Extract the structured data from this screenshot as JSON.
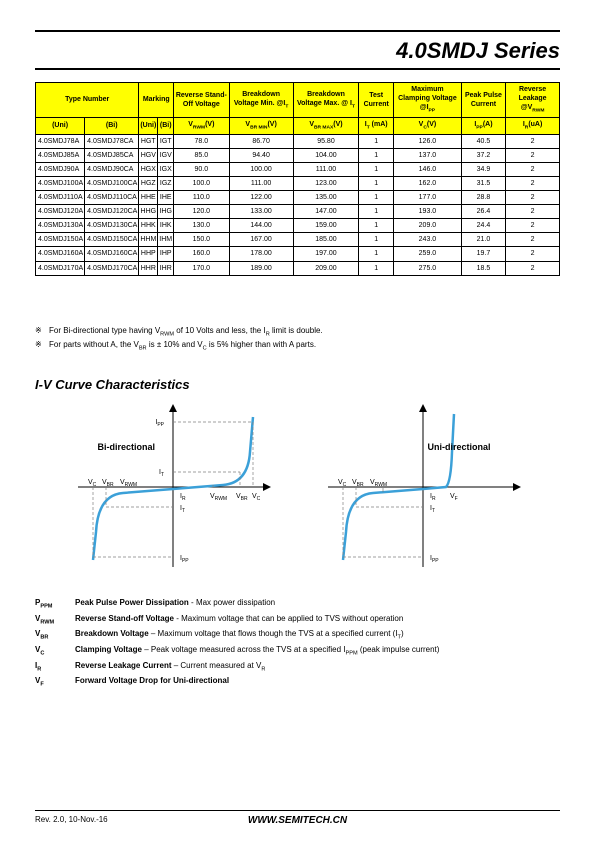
{
  "header": {
    "title": "4.0SMDJ  Series"
  },
  "table": {
    "headers": {
      "type_number": "Type Number",
      "marking": "Marking",
      "reverse_standoff": "Reverse Stand-Off Voltage",
      "breakdown_min": "Breakdown Voltage Min. @I",
      "breakdown_min_sub": "T",
      "breakdown_max": "Breakdown Voltage Max. @ I",
      "breakdown_max_sub": "T",
      "test_current": "Test Current",
      "clamping": "Maximum Clamping Voltage @I",
      "clamping_sub": "PP",
      "peak_pulse": "Peak Pulse Current",
      "leakage": "Reverse Leakage @V",
      "leakage_sub": "RWM",
      "uni": "(Uni)",
      "bi": "(Bi)",
      "vrwm": "V",
      "vrwm_sub": "RWM",
      "vrwm_unit": "(V)",
      "vbrmin": "V",
      "vbrmin_sub": "BR MIN",
      "vbrmin_unit": "(V)",
      "vbrmax": "V",
      "vbrmax_sub": "BR MAX",
      "vbrmax_unit": "(V)",
      "it": "I",
      "it_sub": "T",
      "it_unit": " (mA)",
      "vc": "V",
      "vc_sub": "C",
      "vc_unit": "(V)",
      "ipp": "I",
      "ipp_sub": "PP",
      "ipp_unit": "(A)",
      "ir": "I",
      "ir_sub": "R",
      "ir_unit": "(uA)"
    },
    "rows": [
      {
        "uni": "4.0SMDJ78A",
        "bi": "4.0SMDJ78CA",
        "muni": "HGT",
        "mbi": "IGT",
        "vrwm": "78.0",
        "vbrmin": "86.70",
        "vbrmax": "95.80",
        "it": "1",
        "vc": "126.0",
        "ipp": "40.5",
        "ir": "2",
        "sep": false
      },
      {
        "uni": "4.0SMDJ85A",
        "bi": "4.0SMDJ85CA",
        "muni": "HGV",
        "mbi": "IGV",
        "vrwm": "85.0",
        "vbrmin": "94.40",
        "vbrmax": "104.00",
        "it": "1",
        "vc": "137.0",
        "ipp": "37.2",
        "ir": "2",
        "sep": false
      },
      {
        "uni": "4.0SMDJ90A",
        "bi": "4.0SMDJ90CA",
        "muni": "HGX",
        "mbi": "IGX",
        "vrwm": "90.0",
        "vbrmin": "100.00",
        "vbrmax": "111.00",
        "it": "1",
        "vc": "146.0",
        "ipp": "34.9",
        "ir": "2",
        "sep": false
      },
      {
        "uni": "4.0SMDJ100A",
        "bi": "4.0SMDJ100CA",
        "muni": "HGZ",
        "mbi": "IGZ",
        "vrwm": "100.0",
        "vbrmin": "111.00",
        "vbrmax": "123.00",
        "it": "1",
        "vc": "162.0",
        "ipp": "31.5",
        "ir": "2",
        "sep": false
      },
      {
        "uni": "4.0SMDJ110A",
        "bi": "4.0SMDJ110CA",
        "muni": "HHE",
        "mbi": "IHE",
        "vrwm": "110.0",
        "vbrmin": "122.00",
        "vbrmax": "135.00",
        "it": "1",
        "vc": "177.0",
        "ipp": "28.8",
        "ir": "2",
        "sep": true
      },
      {
        "uni": "4.0SMDJ120A",
        "bi": "4.0SMDJ120CA",
        "muni": "HHG",
        "mbi": "IHG",
        "vrwm": "120.0",
        "vbrmin": "133.00",
        "vbrmax": "147.00",
        "it": "1",
        "vc": "193.0",
        "ipp": "26.4",
        "ir": "2",
        "sep": false
      },
      {
        "uni": "4.0SMDJ130A",
        "bi": "4.0SMDJ130CA",
        "muni": "HHK",
        "mbi": "IHK",
        "vrwm": "130.0",
        "vbrmin": "144.00",
        "vbrmax": "159.00",
        "it": "1",
        "vc": "209.0",
        "ipp": "24.4",
        "ir": "2",
        "sep": false
      },
      {
        "uni": "4.0SMDJ150A",
        "bi": "4.0SMDJ150CA",
        "muni": "HHM",
        "mbi": "IHM",
        "vrwm": "150.0",
        "vbrmin": "167.00",
        "vbrmax": "185.00",
        "it": "1",
        "vc": "243.0",
        "ipp": "21.0",
        "ir": "2",
        "sep": false
      },
      {
        "uni": "4.0SMDJ160A",
        "bi": "4.0SMDJ160CA",
        "muni": "HHP",
        "mbi": "IHP",
        "vrwm": "160.0",
        "vbrmin": "178.00",
        "vbrmax": "197.00",
        "it": "1",
        "vc": "259.0",
        "ipp": "19.7",
        "ir": "2",
        "sep": true
      },
      {
        "uni": "4.0SMDJ170A",
        "bi": "4.0SMDJ170CA",
        "muni": "HHR",
        "mbi": "IHR",
        "vrwm": "170.0",
        "vbrmin": "189.00",
        "vbrmax": "209.00",
        "it": "1",
        "vc": "275.0",
        "ipp": "18.5",
        "ir": "2",
        "sep": false
      }
    ]
  },
  "notes": {
    "n1_a": "For Bi-directional type having V",
    "n1_b": " of 10 Volts and less, the I",
    "n1_c": " limit is double.",
    "n2_a": "For parts without A, the V",
    "n2_b": " is ± 10% and V",
    "n2_c": " is 5% higher than with A parts."
  },
  "section_title": "I-V Curve Characteristics",
  "curves": {
    "bi_label": "Bi-directional",
    "uni_label": "Uni-directional",
    "ipp": "I",
    "ipp_sub": "PP",
    "it": "I",
    "it_sub": "T",
    "ir": "I",
    "ir_sub": "R",
    "vc": "V",
    "vc_sub": "C",
    "vbr": "V",
    "vbr_sub": "BR",
    "vrwm": "V",
    "vrwm_sub": "RWM",
    "vf": "V",
    "vf_sub": "F",
    "curve_color": "#3ba0d8",
    "axis_color": "#000000",
    "dash_color": "#808080"
  },
  "definitions": [
    {
      "sym": "P",
      "sub": "PPM",
      "bold": "Peak Pulse Power Dissipation",
      "rest": " - Max power dissipation"
    },
    {
      "sym": "V",
      "sub": "RWM",
      "bold": "Reverse Stand-off Voltage",
      "rest": " - Maximum voltage that can be applied to TVS without operation"
    },
    {
      "sym": "V",
      "sub": "BR",
      "bold": "Breakdown Voltage",
      "rest": " – Maximum voltage that flows though the TVS at a specified current (I_T)"
    },
    {
      "sym": "V",
      "sub": "C",
      "bold": "Clamping Voltage",
      "rest": " – Peak voltage measured across the TVS at a specified I_PPM (peak impulse current)"
    },
    {
      "sym": "I",
      "sub": "R",
      "bold": "Reverse Leakage Current",
      "rest": " – Current measured at V_R"
    },
    {
      "sym": "V",
      "sub": "F",
      "bold": "Forward Voltage Drop for Uni-directional",
      "rest": ""
    }
  ],
  "footer": {
    "rev": "Rev. 2.0, 10-Nov.-16",
    "url": "WWW.SEMITECH.CN"
  }
}
